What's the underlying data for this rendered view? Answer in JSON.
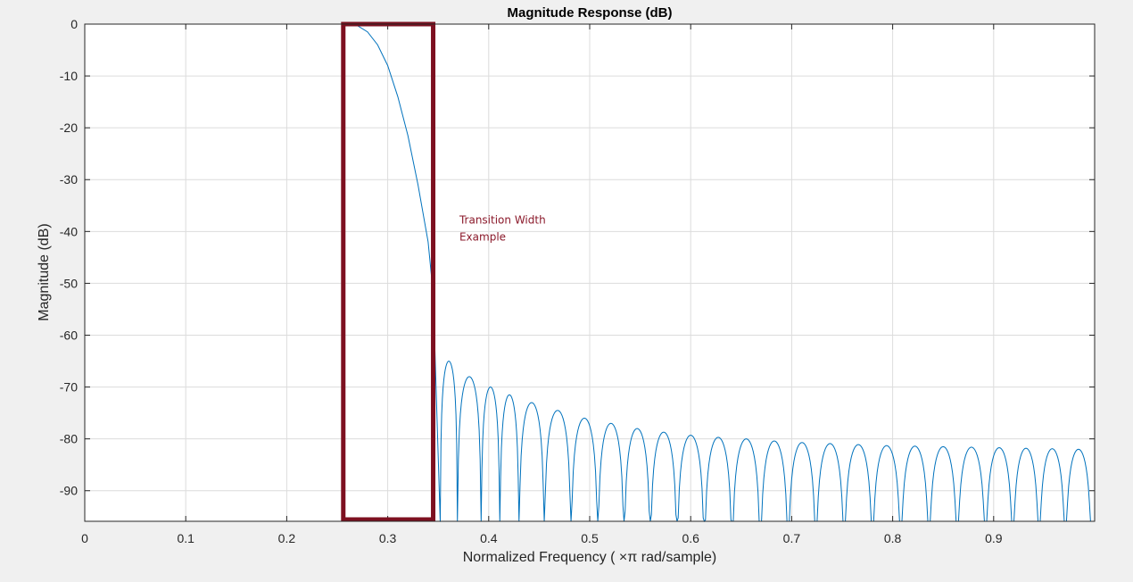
{
  "chart_data": {
    "type": "line",
    "title": "Magnitude Response (dB)",
    "xlabel": "Normalized  Frequency  ( ×π  rad/sample)",
    "ylabel": "Magnitude (dB)",
    "xlim": [
      0,
      1
    ],
    "ylim": [
      -95.9,
      0
    ],
    "xticks": [
      0,
      0.1,
      0.2,
      0.3,
      0.4,
      0.5,
      0.6,
      0.7,
      0.8,
      0.9
    ],
    "xtick_labels": [
      "0",
      "0.1",
      "0.2",
      "0.3",
      "0.4",
      "0.5",
      "0.6",
      "0.7",
      "0.8",
      "0.9"
    ],
    "yticks": [
      0,
      -10,
      -20,
      -30,
      -40,
      -50,
      -60,
      -70,
      -80,
      -90
    ],
    "ytick_labels": [
      "0",
      "-10",
      "-20",
      "-30",
      "-40",
      "-50",
      "-60",
      "-70",
      "-80",
      "-90"
    ],
    "grid": true,
    "line_color": "#0072bd",
    "series": [
      {
        "passband_x": [
          0,
          0.255
        ],
        "passband_y": [
          0,
          0
        ],
        "rolloff": {
          "x": [
            0.255,
            0.27,
            0.28,
            0.29,
            0.3,
            0.31,
            0.32,
            0.33,
            0.34,
            0.345,
            0.352
          ],
          "y": [
            0,
            -0.3,
            -1.5,
            -4,
            -8,
            -14,
            -21.5,
            -31,
            -42,
            -52,
            -96
          ]
        },
        "stopband_lobes": {
          "x": [
            0.357,
            0.381,
            0.404,
            0.418,
            0.442,
            0.468,
            0.495,
            0.521,
            0.547,
            0.573,
            0.6,
            0.627,
            0.655,
            0.683,
            0.71,
            0.738,
            0.766,
            0.794,
            0.822,
            0.85,
            0.878,
            0.906,
            0.932,
            0.958,
            0.984
          ],
          "y": [
            -65,
            -68,
            -70,
            -71.5,
            -73,
            -74.5,
            -76,
            -77,
            -78,
            -78.7,
            -79.3,
            -79.7,
            -80,
            -80.4,
            -80.7,
            -80.9,
            -81.1,
            -81.3,
            -81.4,
            -81.5,
            -81.6,
            -81.7,
            -81.8,
            -81.9,
            -82
          ]
        }
      }
    ],
    "annotation": {
      "text_lines": [
        "Transition Width",
        "Example"
      ],
      "x": 0.371,
      "y": -38.5,
      "color": "#8b1a2b"
    },
    "highlight_box": {
      "x": [
        0.256,
        0.345
      ],
      "y": [
        -95.9,
        0
      ],
      "color": "#7d1020"
    }
  }
}
